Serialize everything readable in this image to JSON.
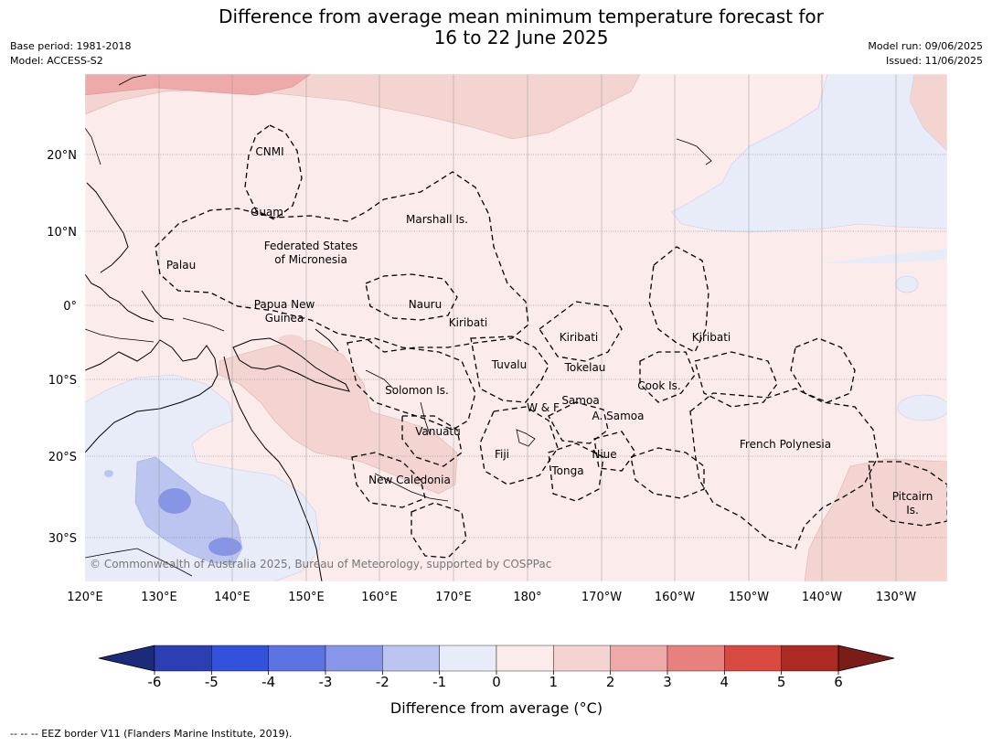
{
  "header": {
    "title_line1": "Difference from average mean minimum temperature forecast for",
    "title_line2": "16 to 22 June 2025",
    "base_period": "Base period: 1981-2018",
    "model": "Model: ACCESS-S2",
    "model_run": "Model run: 09/06/2025",
    "issued": "Issued: 11/06/2025"
  },
  "map": {
    "lon_labels": [
      "120°E",
      "130°E",
      "140°E",
      "150°E",
      "160°E",
      "170°E",
      "180°",
      "170°W",
      "160°W",
      "150°W",
      "140°W",
      "130°W"
    ],
    "lat_labels": [
      "20°N",
      "10°N",
      "0°",
      "10°S",
      "20°S",
      "30°S"
    ],
    "places": [
      "CNMI",
      "Guam",
      "Marshall Is.",
      "Federated States",
      "of Micronesia",
      "Palau",
      "Papua New",
      "Guinea",
      "Nauru",
      "Kiribati",
      "Kiribati",
      "Kiribati",
      "Tuvalu",
      "Tokelau",
      "Cook Is.",
      "Solomon Is.",
      "W & F",
      "Samoa",
      "A. Samoa",
      "Vanuatu",
      "Fiji",
      "Niue",
      "Tonga",
      "French Polynesia",
      "New Caledonia",
      "Pitcairn",
      "Is."
    ],
    "copyright": "© Commonwealth of Australia 2025, Bureau of Meteorology, supported by COSPPac",
    "colors": {
      "ocean_default": "#fbebea",
      "warm_1_2": "#f3d4d1",
      "warm_2_3": "#edaaa8",
      "cool_0_1": "#e8ecf9",
      "cool_1_2": "#bcc5ef",
      "cool_2_3": "#8695e6",
      "land": "#f7dad7"
    }
  },
  "colorbar": {
    "ticks": [
      "-6",
      "-5",
      "-4",
      "-3",
      "-2",
      "-1",
      "0",
      "1",
      "2",
      "3",
      "4",
      "5",
      "6"
    ],
    "colors": [
      "#1c2a7a",
      "#2a3fb2",
      "#3252dc",
      "#5c73e2",
      "#8796e8",
      "#bcc5ef",
      "#e8ecf9",
      "#fbebea",
      "#f3d4d1",
      "#edaaa8",
      "#e6817c",
      "#d84a40",
      "#ad2a22",
      "#7a1c18"
    ],
    "label": "Difference from average (°C)"
  },
  "footnote": "--  --  -- EEZ border V11 (Flanders Marine Institute, 2019)."
}
